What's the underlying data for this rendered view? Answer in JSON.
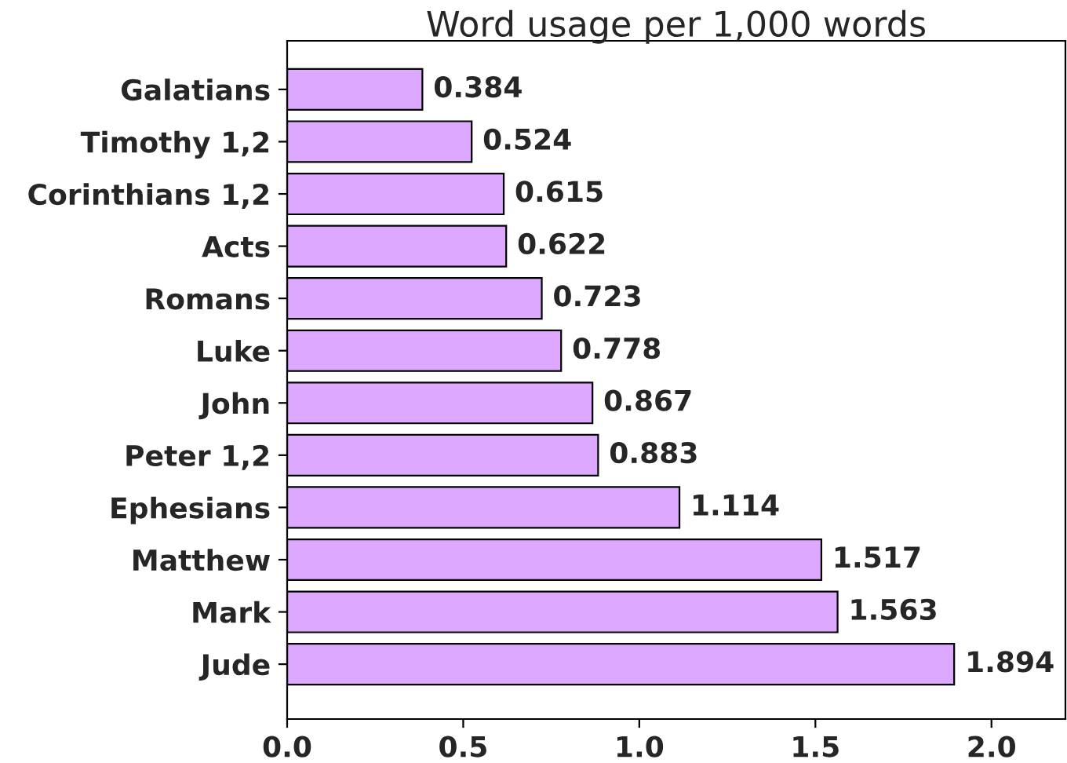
{
  "chart_data": {
    "type": "bar",
    "orientation": "horizontal",
    "title": "Word usage per 1,000 words",
    "categories": [
      "Galatians",
      "Timothy 1,2",
      "Corinthians 1,2",
      "Acts",
      "Romans",
      "Luke",
      "John",
      "Peter 1,2",
      "Ephesians",
      "Matthew",
      "Mark",
      "Jude"
    ],
    "values": [
      0.384,
      0.524,
      0.615,
      0.622,
      0.723,
      0.778,
      0.867,
      0.883,
      1.114,
      1.517,
      1.563,
      1.894
    ],
    "color": "#dda8ff",
    "xlim": [
      0,
      2.21
    ],
    "xticks": [
      "0.0",
      "0.5",
      "1.0",
      "1.5",
      "2.0"
    ],
    "data_labels": true,
    "grid": false
  }
}
